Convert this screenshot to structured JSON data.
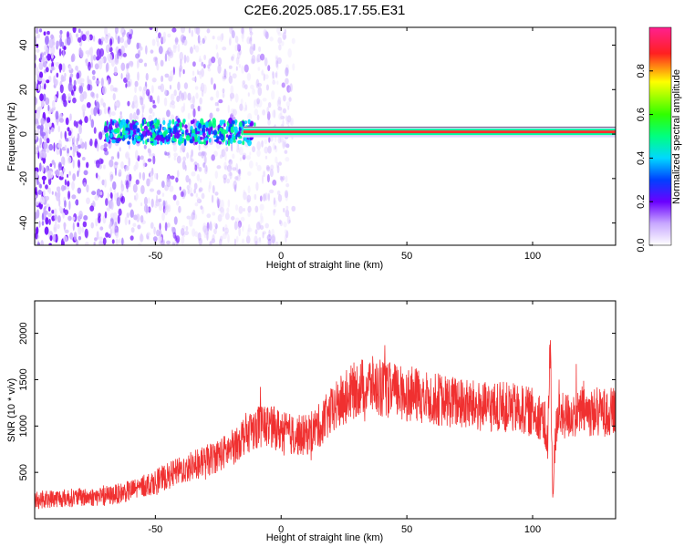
{
  "title": "C2E6.2025.085.17.55.E31",
  "colors": {
    "snr_line": "#f03030",
    "frame": "#000000"
  },
  "chart_data": [
    {
      "type": "heatmap",
      "xlabel": "Height of straight line (km)",
      "ylabel": "Frequency (Hz)",
      "xlim": [
        -98,
        133
      ],
      "ylim": [
        -50,
        48
      ],
      "x_ticks": [
        -50,
        0,
        50,
        100
      ],
      "y_ticks": [
        -40,
        -20,
        0,
        20,
        40
      ],
      "colorbar": {
        "label": "Normalized spectral amplitude",
        "range": [
          0,
          1
        ],
        "ticks": [
          0.0,
          0.2,
          0.4,
          0.6,
          0.8
        ],
        "tick_labels": [
          "0.0",
          "0.2",
          "0.4",
          "0.6",
          "0.8"
        ],
        "colormap": "white-purple-blue-cyan-green-yellow-red-magenta"
      },
      "features": {
        "main_line_freq_hz": 1,
        "line_start_km": -15,
        "noise_region_km": [
          -98,
          -15
        ]
      }
    },
    {
      "type": "line",
      "xlabel": "Height of straight line (km)",
      "ylabel": "SNR (10 * v/v)",
      "xlim": [
        -98,
        133
      ],
      "ylim": [
        0,
        2350
      ],
      "x_ticks": [
        -50,
        0,
        50,
        100
      ],
      "y_ticks": [
        500,
        1000,
        1500,
        2000
      ],
      "series": [
        {
          "x": [
            -98,
            -90,
            -80,
            -70,
            -60,
            -50,
            -40,
            -30,
            -20,
            -15,
            -10,
            -5,
            0,
            5,
            10,
            15,
            20,
            25,
            30,
            35,
            40,
            50,
            60,
            70,
            80,
            90,
            100,
            104,
            106,
            107,
            108,
            109,
            110,
            112,
            120,
            133
          ],
          "values": [
            200,
            220,
            230,
            240,
            300,
            400,
            520,
            620,
            750,
            900,
            1000,
            1000,
            950,
            900,
            900,
            1000,
            1150,
            1300,
            1400,
            1450,
            1400,
            1350,
            1300,
            1250,
            1200,
            1200,
            1150,
            1100,
            800,
            1900,
            200,
            900,
            1100,
            1100,
            1150,
            1150
          ]
        }
      ]
    }
  ]
}
